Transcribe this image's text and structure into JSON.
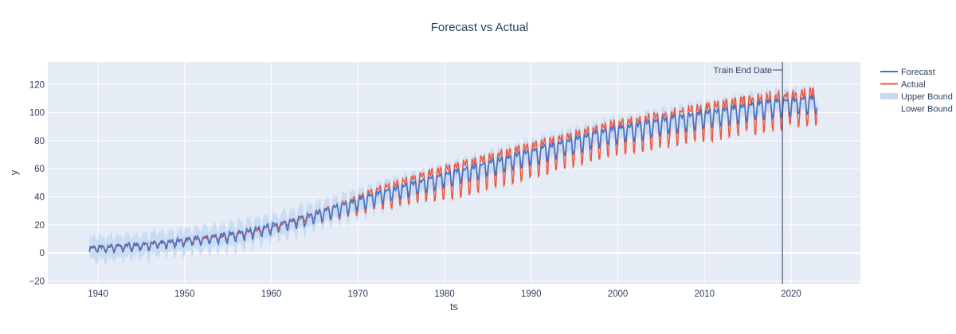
{
  "chart_data": {
    "type": "line",
    "title": "Forecast vs Actual",
    "xlabel": "ts",
    "ylabel": "y",
    "xlim": [
      1934.2,
      2028.0
    ],
    "ylim": [
      -22,
      136
    ],
    "x_ticks": [
      1940,
      1950,
      1960,
      1970,
      1980,
      1990,
      2000,
      2010,
      2020
    ],
    "y_ticks": [
      -20,
      0,
      20,
      40,
      60,
      80,
      100,
      120
    ],
    "x_tick_labels": [
      "1940",
      "1950",
      "1960",
      "1970",
      "1980",
      "1990",
      "2000",
      "2010",
      "2020"
    ],
    "y_tick_labels": [
      "−20",
      "0",
      "20",
      "40",
      "60",
      "80",
      "100",
      "120"
    ],
    "grid": true,
    "legend_position": "right",
    "colors": {
      "forecast": "#4472c4",
      "actual": "#ef553b",
      "band": "#c6d9f1",
      "plot_bg": "#e5ecf6",
      "grid": "#ffffff",
      "vline": "#2a3f5f"
    },
    "annotation": {
      "text": "Train End Date",
      "x": 2019.0
    },
    "series": [
      {
        "name": "Forecast",
        "x": [
          1939,
          1942,
          1945,
          1948,
          1951,
          1954,
          1957,
          1960,
          1963,
          1966,
          1969,
          1972,
          1975,
          1978,
          1981,
          1984,
          1987,
          1990,
          1993,
          1996,
          1999,
          2002,
          2005,
          2008,
          2011,
          2014,
          2017,
          2020,
          2023
        ],
        "y": [
          3,
          4,
          5.5,
          7,
          9,
          11,
          14,
          18,
          23,
          28,
          34,
          40,
          45,
          50,
          55,
          60,
          65,
          70,
          75,
          80,
          85,
          88,
          92,
          95,
          98,
          101,
          104,
          106,
          108
        ],
        "seasonal_amplitude": 6
      },
      {
        "name": "Actual",
        "x": [
          1939,
          1942,
          1945,
          1948,
          1951,
          1954,
          1957,
          1960,
          1963,
          1966,
          1969,
          1972,
          1975,
          1978,
          1981,
          1984,
          1987,
          1990,
          1993,
          1996,
          1999,
          2002,
          2005,
          2008,
          2011,
          2014,
          2017,
          2020,
          2023
        ],
        "y": [
          3,
          4,
          5.5,
          7,
          9,
          11,
          14,
          18,
          23,
          28,
          34,
          41,
          46,
          51,
          55,
          60,
          65,
          70,
          75,
          80,
          85,
          88,
          92,
          95,
          98,
          101,
          104,
          106,
          108
        ],
        "seasonal_amplitude": 12
      },
      {
        "name": "Upper Bound",
        "band_halfwidth": 8
      },
      {
        "name": "Lower Bound"
      }
    ]
  }
}
